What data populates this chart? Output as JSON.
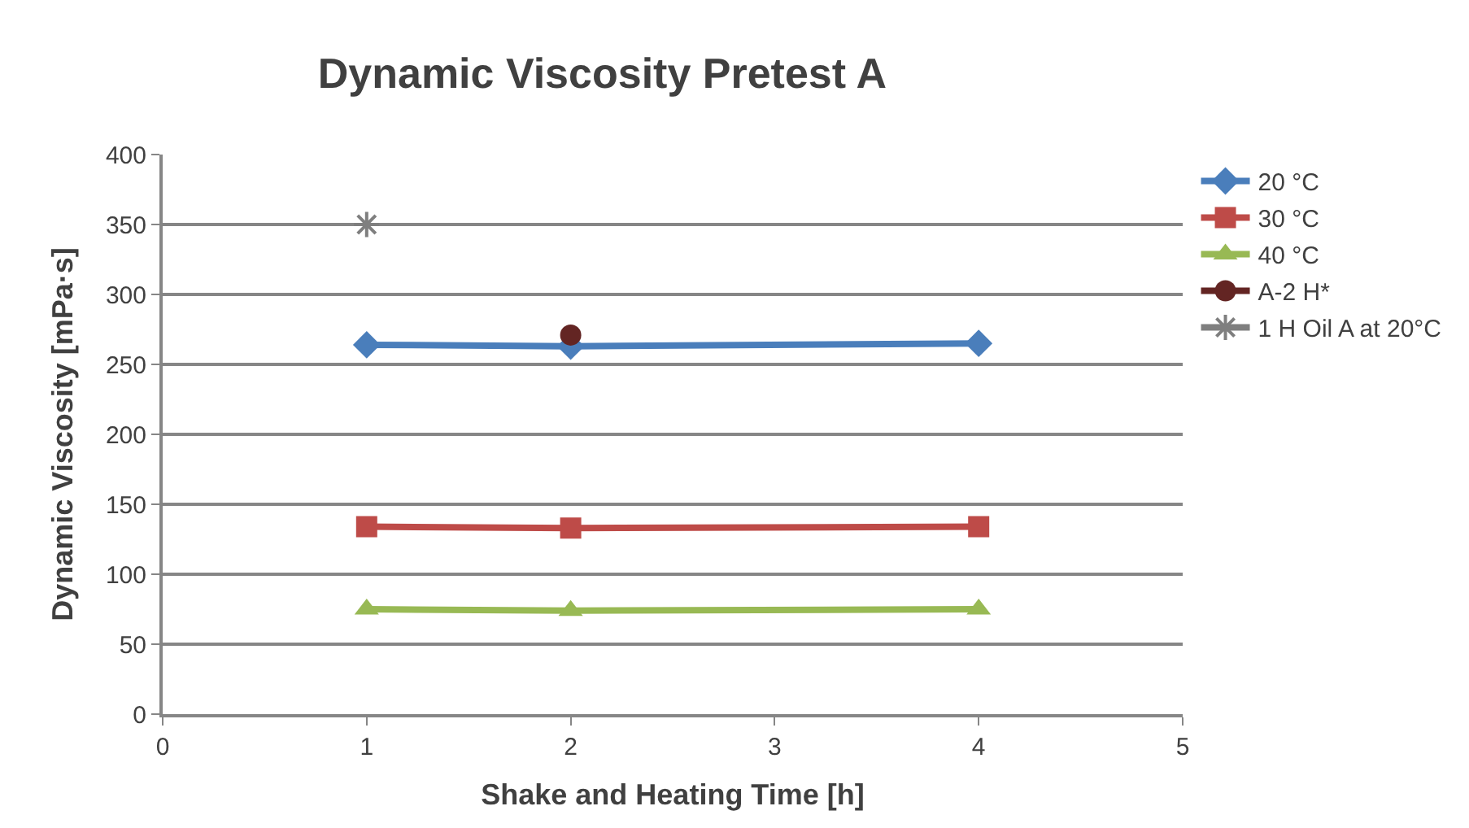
{
  "chart_data": {
    "type": "line",
    "title": "Dynamic Viscosity Pretest A",
    "xlabel": "Shake and Heating Time [h]",
    "ylabel": "Dynamic Viscosity [mPa·s]",
    "x": [
      1,
      2,
      4
    ],
    "series": [
      {
        "name": "20 °C",
        "color": "#4a7ebb",
        "marker": "diamond",
        "values": [
          264,
          263,
          265
        ]
      },
      {
        "name": "30 °C",
        "color": "#be4b48",
        "marker": "square",
        "values": [
          134,
          133,
          134
        ]
      },
      {
        "name": "40 °C",
        "color": "#98b954",
        "marker": "triangle",
        "values": [
          75,
          74,
          75
        ]
      },
      {
        "name": "A-2 H*",
        "color": "#632523",
        "marker": "circle",
        "x": [
          2
        ],
        "values": [
          271
        ]
      },
      {
        "name": "1 H Oil A at 20°C",
        "color": "#7f7f7f",
        "marker": "cross",
        "x": [
          1
        ],
        "values": [
          350
        ]
      }
    ],
    "xlim": [
      0,
      5
    ],
    "xticks": [
      0,
      1,
      2,
      3,
      4,
      5
    ],
    "ylim": [
      0,
      400
    ],
    "yticks": [
      0,
      50,
      100,
      150,
      200,
      250,
      300,
      350,
      400
    ],
    "grid": "y",
    "legend": "right"
  }
}
